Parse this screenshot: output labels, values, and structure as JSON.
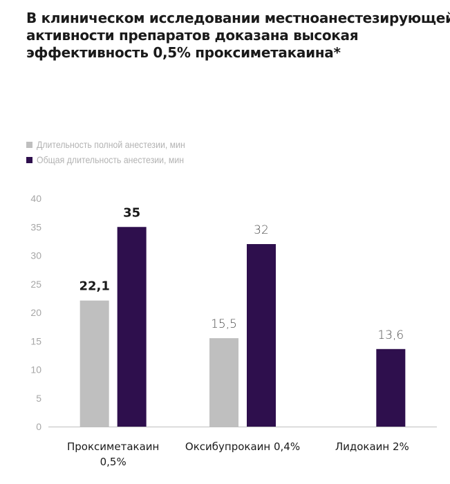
{
  "title_lines": [
    "В клиническом исследовании местноанестезирующей",
    "активности препаратов доказана высокая",
    "эффективность 0,5% проксиметакаина*"
  ],
  "colors": {
    "gray": "#bfbfbf",
    "purple": "#2e0f4d"
  },
  "legend": [
    {
      "label": "Длительность полной анестезии, мин",
      "color": "#bfbfbf"
    },
    {
      "label": "Общая длительность анестезии, мин",
      "color": "#2e0f4d"
    }
  ],
  "chart_data": {
    "type": "bar",
    "categories": [
      [
        "Проксиметакаин",
        "0,5%"
      ],
      [
        "Оксибупрокаин 0,4%"
      ],
      [
        "Лидокаин 2%"
      ]
    ],
    "series": [
      {
        "name": "Длительность полной анестезии, мин",
        "values": [
          22.1,
          15.5,
          null
        ],
        "labels": [
          "22,1",
          "15,5",
          ""
        ],
        "bold": [
          true,
          false,
          false
        ]
      },
      {
        "name": "Общая длительность анестезии, мин",
        "values": [
          35,
          32,
          13.6
        ],
        "labels": [
          "35",
          "32",
          "13,6"
        ],
        "bold": [
          true,
          false,
          false
        ]
      }
    ],
    "ylim": [
      0,
      40
    ],
    "yticks": [
      0,
      5,
      10,
      15,
      20,
      25,
      30,
      35,
      40
    ],
    "grid": false,
    "legend_position": "top-left"
  }
}
